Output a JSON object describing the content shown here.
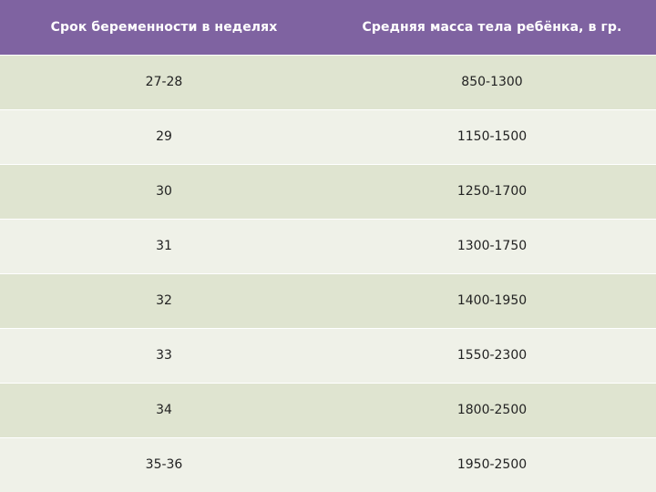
{
  "table": {
    "headers": [
      "Срок беременности в неделях",
      "Средняя масса тела ребёнка, в гр."
    ],
    "rows": [
      [
        "27-28",
        "850-1300"
      ],
      [
        "29",
        "1150-1500"
      ],
      [
        "30",
        "1250-1700"
      ],
      [
        "31",
        "1300-1750"
      ],
      [
        "32",
        "1400-1950"
      ],
      [
        "33",
        "1550-2300"
      ],
      [
        "34",
        "1800-2500"
      ],
      [
        "35-36",
        "1950-2500"
      ]
    ]
  },
  "colors": {
    "header_bg": "#7f63a1",
    "row_odd": "#dfe4d0",
    "row_even": "#eff1e8"
  }
}
